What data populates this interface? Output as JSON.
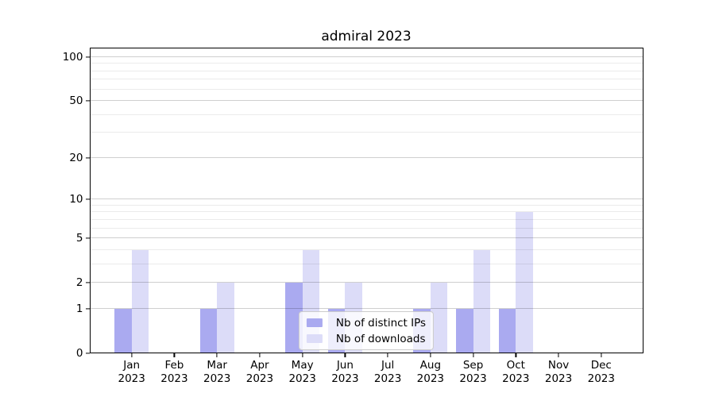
{
  "chart_data": {
    "type": "bar",
    "title": "admiral 2023",
    "categories": [
      "Jan\n2023",
      "Feb\n2023",
      "Mar\n2023",
      "Apr\n2023",
      "May\n2023",
      "Jun\n2023",
      "Jul\n2023",
      "Aug\n2023",
      "Sep\n2023",
      "Oct\n2023",
      "Nov\n2023",
      "Dec\n2023"
    ],
    "series": [
      {
        "name": "Nb of distinct IPs",
        "color": "#aaaaf0",
        "values": [
          1,
          0,
          1,
          0,
          2,
          1,
          0,
          1,
          1,
          1,
          0,
          0
        ]
      },
      {
        "name": "Nb of downloads",
        "color": "#dcdcf8",
        "values": [
          4,
          0,
          2,
          0,
          4,
          2,
          0,
          2,
          4,
          8,
          0,
          0
        ]
      }
    ],
    "yscale": "log1p",
    "ylim": [
      0,
      116
    ],
    "yticks_major": [
      0,
      1,
      2,
      5,
      10,
      20,
      50,
      100
    ],
    "yticks_minor": [
      3,
      4,
      6,
      7,
      8,
      9,
      30,
      40,
      60,
      70,
      80,
      90
    ],
    "grid": true,
    "legend_position": "lower center",
    "axis_color": "#000000",
    "grid_major_color": "rgba(0,0,0,0.19)",
    "grid_minor_color": "rgba(0,0,0,0.08)",
    "background_color": "#ffffff"
  }
}
